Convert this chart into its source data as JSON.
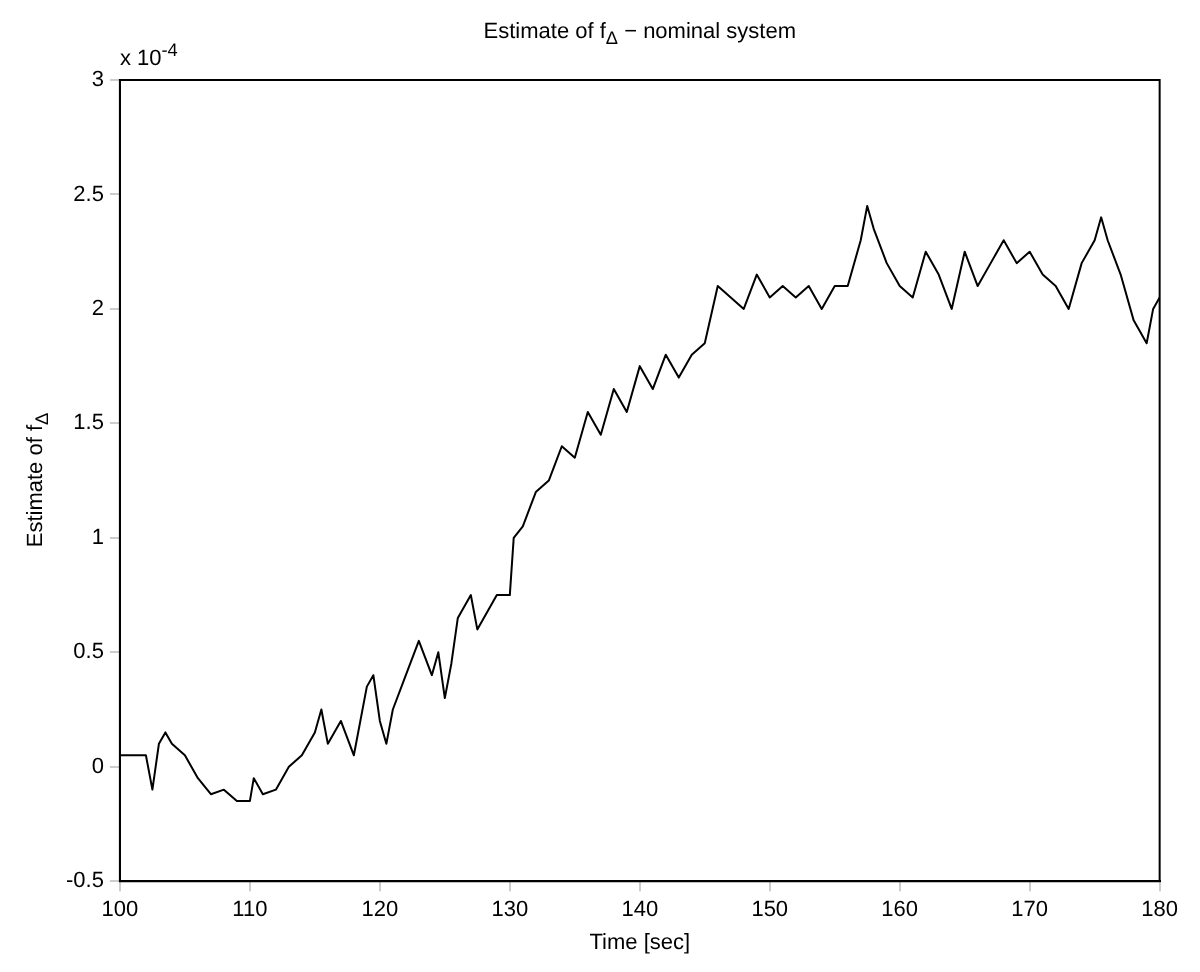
{
  "chart_data": {
    "type": "line",
    "title": "Estimate of f$_{Δ}$ − nominal system",
    "xlabel": "Time [sec]",
    "ylabel": "Estimate of f$_{Δ}$",
    "annotations": [
      "x 10$^{-4}$"
    ],
    "series": [
      {
        "color": "#000000",
        "x": [
          100,
          101,
          102,
          102.5,
          103,
          103.5,
          104,
          105,
          106,
          107,
          108,
          109,
          110,
          110.3,
          111,
          112,
          113,
          114,
          115,
          115.5,
          116,
          117,
          118,
          119,
          119.5,
          120,
          120.5,
          121,
          122,
          123,
          124,
          124.5,
          125,
          125.5,
          126,
          127,
          127.5,
          128,
          129,
          130,
          130.3,
          131,
          132,
          133,
          134,
          135,
          136,
          137,
          138,
          139,
          140,
          141,
          142,
          143,
          144,
          145,
          146,
          147,
          148,
          149,
          150,
          151,
          152,
          153,
          154,
          155,
          156,
          157,
          157.5,
          158,
          159,
          160,
          161,
          162,
          163,
          164,
          165,
          166,
          167,
          168,
          169,
          170,
          171,
          172,
          173,
          174,
          175,
          175.5,
          176,
          177,
          178,
          179,
          179.5,
          180
        ],
        "values": [
          0.05,
          0.05,
          0.05,
          -0.1,
          0.1,
          0.15,
          0.1,
          0.05,
          -0.05,
          -0.12,
          -0.1,
          -0.15,
          -0.15,
          -0.05,
          -0.12,
          -0.1,
          0,
          0.05,
          0.15,
          0.25,
          0.1,
          0.2,
          0.05,
          0.35,
          0.4,
          0.2,
          0.1,
          0.25,
          0.4,
          0.55,
          0.4,
          0.5,
          0.3,
          0.45,
          0.65,
          0.75,
          0.6,
          0.65,
          0.75,
          0.75,
          1.0,
          1.05,
          1.2,
          1.25,
          1.4,
          1.35,
          1.55,
          1.45,
          1.65,
          1.55,
          1.75,
          1.65,
          1.8,
          1.7,
          1.8,
          1.85,
          2.1,
          2.05,
          2.0,
          2.15,
          2.05,
          2.1,
          2.05,
          2.1,
          2.0,
          2.1,
          2.1,
          2.3,
          2.45,
          2.35,
          2.2,
          2.1,
          2.05,
          2.25,
          2.15,
          2.0,
          2.25,
          2.1,
          2.2,
          2.3,
          2.2,
          2.25,
          2.15,
          2.1,
          2.0,
          2.2,
          2.3,
          2.4,
          2.3,
          2.15,
          1.95,
          1.85,
          2.0,
          2.05
        ]
      }
    ],
    "xlim": [
      100,
      180
    ],
    "xticks": [
      100,
      110,
      120,
      130,
      140,
      150,
      160,
      170,
      180
    ],
    "ylim": [
      -0.5,
      3
    ],
    "yticks": [
      -0.5,
      0,
      0.5,
      1,
      1.5,
      2,
      2.5,
      3
    ],
    "grid": false,
    "legend": false,
    "marker": "none",
    "line_style": "solid"
  }
}
